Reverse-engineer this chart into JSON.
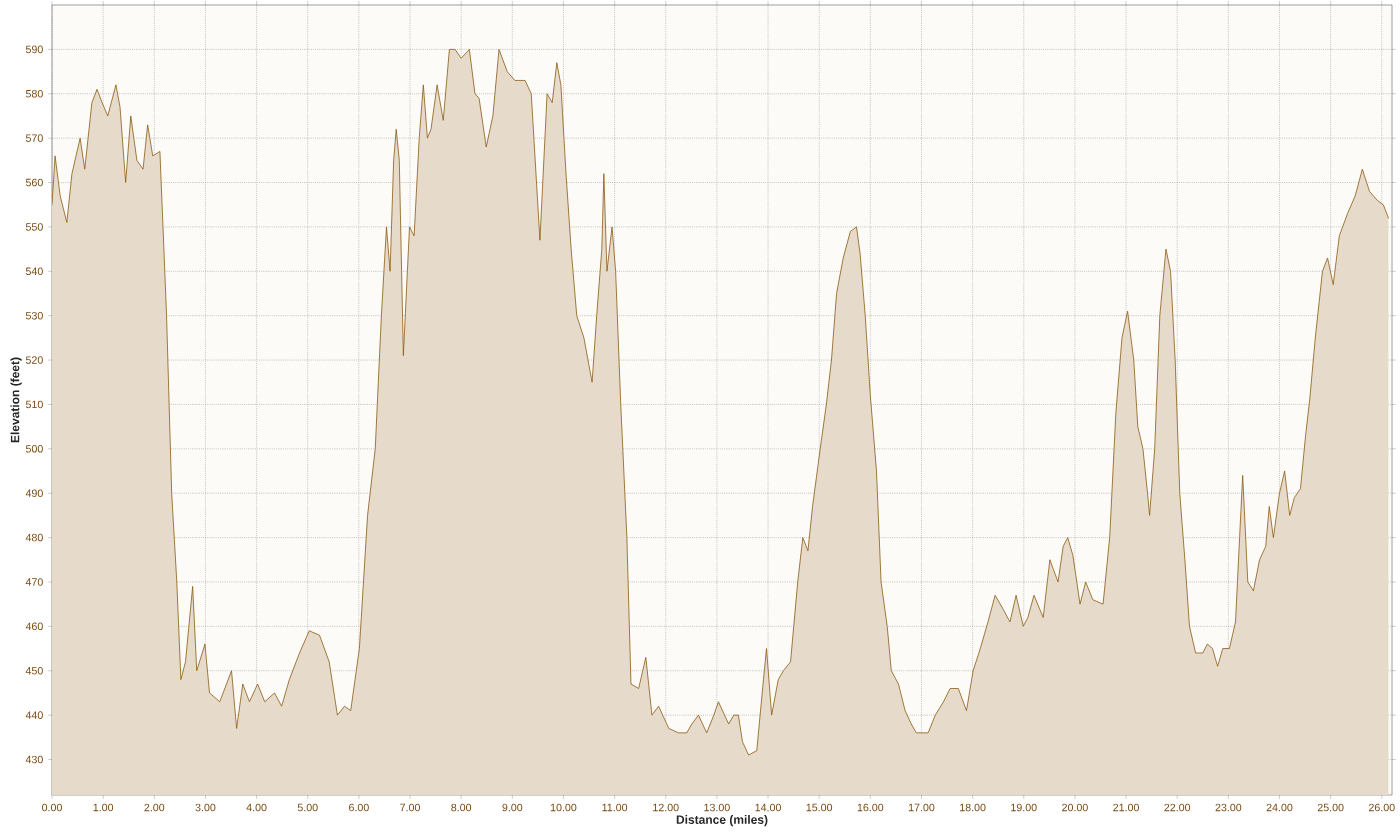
{
  "chart_data": {
    "type": "area",
    "xlabel": "Distance (miles)",
    "ylabel": "Elevation (feet)",
    "x": [
      0,
      0.06,
      0.16,
      0.29,
      0.39,
      0.55,
      0.64,
      0.78,
      0.88,
      0.98,
      1.09,
      1.25,
      1.33,
      1.44,
      1.54,
      1.66,
      1.78,
      1.87,
      1.97,
      2.11,
      2.17,
      2.24,
      2.34,
      2.44,
      2.52,
      2.61,
      2.75,
      2.83,
      2.99,
      3.08,
      3.28,
      3.51,
      3.61,
      3.73,
      3.86,
      4.02,
      4.16,
      4.35,
      4.49,
      4.64,
      4.84,
      5.03,
      5.23,
      5.42,
      5.58,
      5.72,
      5.84,
      6.01,
      6.17,
      6.32,
      6.44,
      6.54,
      6.61,
      6.68,
      6.73,
      6.79,
      6.87,
      6.99,
      7.08,
      7.18,
      7.26,
      7.34,
      7.41,
      7.53,
      7.65,
      7.77,
      7.88,
      8.0,
      8.16,
      8.27,
      8.35,
      8.49,
      8.62,
      8.74,
      8.9,
      9.05,
      9.25,
      9.37,
      9.54,
      9.68,
      9.78,
      9.87,
      9.95,
      10.05,
      10.15,
      10.26,
      10.4,
      10.56,
      10.65,
      10.75,
      10.79,
      10.85,
      10.95,
      11.02,
      11.12,
      11.24,
      11.32,
      11.47,
      11.61,
      11.73,
      11.86,
      12.06,
      12.25,
      12.41,
      12.51,
      12.64,
      12.8,
      12.94,
      13.03,
      13.23,
      13.33,
      13.42,
      13.5,
      13.62,
      13.78,
      13.91,
      13.97,
      14.07,
      14.2,
      14.3,
      14.44,
      14.58,
      14.68,
      14.78,
      14.87,
      15.02,
      15.14,
      15.24,
      15.34,
      15.47,
      15.61,
      15.73,
      15.8,
      15.9,
      16.0,
      16.12,
      16.21,
      16.33,
      16.41,
      16.55,
      16.68,
      16.8,
      16.9,
      17.13,
      17.27,
      17.43,
      17.56,
      17.72,
      17.88,
      18.01,
      18.15,
      18.3,
      18.44,
      18.59,
      18.73,
      18.85,
      18.99,
      19.08,
      19.2,
      19.38,
      19.51,
      19.67,
      19.77,
      19.86,
      19.96,
      20.1,
      20.21,
      20.35,
      20.55,
      20.68,
      20.8,
      20.92,
      21.03,
      21.15,
      21.23,
      21.33,
      21.42,
      21.46,
      21.56,
      21.66,
      21.78,
      21.87,
      21.96,
      22.05,
      22.15,
      22.24,
      22.36,
      22.5,
      22.59,
      22.69,
      22.79,
      22.89,
      23.02,
      23.14,
      23.22,
      23.28,
      23.38,
      23.49,
      23.61,
      23.73,
      23.8,
      23.88,
      24.0,
      24.1,
      24.2,
      24.29,
      24.41,
      24.51,
      24.59,
      24.7,
      24.84,
      24.94,
      25.05,
      25.17,
      25.33,
      25.48,
      25.62,
      25.76,
      25.91,
      26.03,
      26.13
    ],
    "series": [
      {
        "color": "#8c5a12",
        "values": [
          555,
          566,
          557,
          551,
          562,
          570,
          563,
          578,
          581,
          578,
          575,
          582,
          577,
          560,
          575,
          565,
          563,
          573,
          566,
          567,
          550,
          530,
          490,
          470,
          448,
          452,
          469,
          450,
          456,
          445,
          443,
          450,
          437,
          447,
          443,
          447,
          443,
          445,
          442,
          448,
          454,
          459,
          458,
          452,
          440,
          442,
          441,
          455,
          485,
          500,
          530,
          550,
          540,
          565,
          572,
          565,
          521,
          550,
          548,
          570,
          582,
          570,
          572,
          582,
          574,
          590,
          590,
          588,
          590,
          580,
          579,
          568,
          575,
          590,
          585,
          583,
          583,
          580,
          547,
          580,
          578,
          587,
          582,
          562,
          545,
          530,
          525,
          515,
          530,
          545,
          562,
          540,
          550,
          540,
          510,
          480,
          447,
          446,
          453,
          440,
          442,
          437,
          436,
          436,
          438,
          440,
          436,
          440,
          443,
          438,
          440,
          440,
          434,
          431,
          432,
          448,
          455,
          440,
          448,
          450,
          452,
          470,
          480,
          477,
          487,
          500,
          510,
          520,
          535,
          543,
          549,
          550,
          544,
          530,
          512,
          495,
          470,
          460,
          450,
          447,
          441,
          438,
          436,
          436,
          440,
          443,
          446,
          446,
          441,
          450,
          455,
          461,
          467,
          464,
          461,
          467,
          460,
          462,
          467,
          462,
          475,
          470,
          478,
          480,
          476,
          465,
          470,
          466,
          465,
          480,
          508,
          525,
          531,
          520,
          505,
          500,
          490,
          485,
          500,
          530,
          545,
          540,
          520,
          490,
          475,
          460,
          454,
          454,
          456,
          455,
          451,
          455,
          455,
          461,
          480,
          494,
          470,
          468,
          475,
          478,
          487,
          480,
          490,
          495,
          485,
          489,
          491,
          503,
          511,
          525,
          540,
          543,
          537,
          548,
          553,
          557,
          563,
          558,
          556,
          555,
          552
        ]
      }
    ],
    "xlim": [
      0,
      26.2
    ],
    "ylim": [
      422,
      600
    ],
    "xticks": [
      {
        "value": 0,
        "label": "0.00"
      },
      {
        "value": 1,
        "label": "1.00"
      },
      {
        "value": 2,
        "label": "2.00"
      },
      {
        "value": 3,
        "label": "3.00"
      },
      {
        "value": 4,
        "label": "4.00"
      },
      {
        "value": 5,
        "label": "5.00"
      },
      {
        "value": 6,
        "label": "6.00"
      },
      {
        "value": 7,
        "label": "7.00"
      },
      {
        "value": 8,
        "label": "8.00"
      },
      {
        "value": 9,
        "label": "9.00"
      },
      {
        "value": 10,
        "label": "10.00"
      },
      {
        "value": 11,
        "label": "11.00"
      },
      {
        "value": 12,
        "label": "12.00"
      },
      {
        "value": 13,
        "label": "13.00"
      },
      {
        "value": 14,
        "label": "14.00"
      },
      {
        "value": 15,
        "label": "15.00"
      },
      {
        "value": 16,
        "label": "16.00"
      },
      {
        "value": 17,
        "label": "17.00"
      },
      {
        "value": 18,
        "label": "18.00"
      },
      {
        "value": 19,
        "label": "19.00"
      },
      {
        "value": 20,
        "label": "20.00"
      },
      {
        "value": 21,
        "label": "21.00"
      },
      {
        "value": 22,
        "label": "22.00"
      },
      {
        "value": 23,
        "label": "23.00"
      },
      {
        "value": 24,
        "label": "24.00"
      },
      {
        "value": 25,
        "label": "25.00"
      },
      {
        "value": 26,
        "label": "26.00"
      }
    ],
    "yticks": [
      430,
      440,
      450,
      460,
      470,
      480,
      490,
      500,
      510,
      520,
      530,
      540,
      550,
      560,
      570,
      580,
      590
    ],
    "grid": true
  }
}
